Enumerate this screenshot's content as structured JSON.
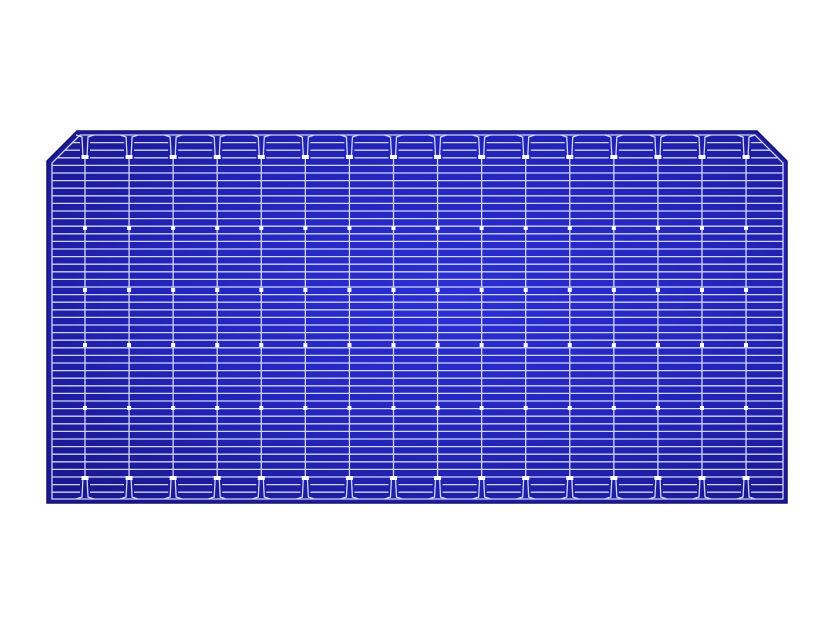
{
  "image": {
    "subject": "solar-cell",
    "colors": {
      "background": "#ffffff",
      "cell_dark": "#1a1890",
      "cell_light": "#2a2ed0",
      "grid_lines": "#e6e8ff",
      "edge": "#141470"
    }
  }
}
